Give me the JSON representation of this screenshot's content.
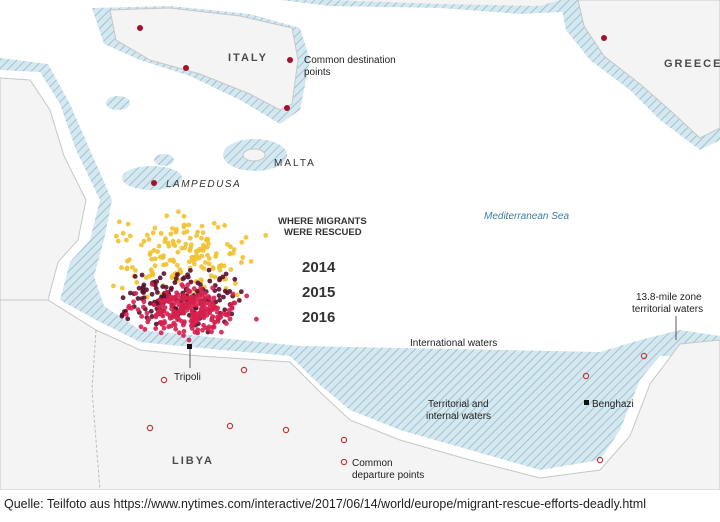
{
  "map": {
    "labels": {
      "italy": "ITALY",
      "greece": "GREECE",
      "malta": "MALTA",
      "lampedusa": "LAMPEDUSA",
      "libya": "LIBYA",
      "tripoli": "Tripoli",
      "benghazi": "Benghazi",
      "mediterranean": "Mediterranean Sea",
      "international_waters": "International waters",
      "territorial_line1": "Territorial and",
      "territorial_line2": "internal waters",
      "zone_line1": "13.8-mile zone",
      "zone_line2": "territorial waters",
      "destination_line1": "Common destination",
      "destination_line2": "points",
      "departure_line1": "Common",
      "departure_line2": "departure points"
    },
    "legend": {
      "title_line1": "WHERE MIGRANTS",
      "title_line2": "WERE RESCUED",
      "years": [
        {
          "label": "2014",
          "color": "#f2c12e"
        },
        {
          "label": "2015",
          "color": "#5a0f2e"
        },
        {
          "label": "2016",
          "color": "#d6204e"
        }
      ]
    },
    "colors": {
      "land": "#f4f4f4",
      "sea": "#ffffff",
      "territorial_water": "#cfe3ec",
      "hatch": "#9cc3d4",
      "destination": "#a3122a",
      "departure": "#c0393b"
    }
  },
  "caption": "Quelle: Teilfoto aus  https://www.nytimes.com/interactive/2017/06/14/world/europe/migrant-rescue-efforts-deadly.html"
}
